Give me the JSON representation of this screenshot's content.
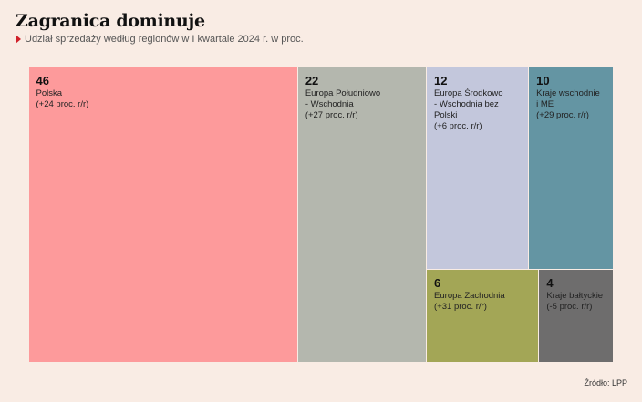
{
  "header": {
    "title": "Zagranica dominuje",
    "subtitle": "Udział sprzedaży według regionów w I kwartale 2024 r. w proc."
  },
  "footer": {
    "source": "Źródło: LPP"
  },
  "chart_data": {
    "type": "treemap",
    "title": "Zagranica dominuje",
    "subtitle": "Udział sprzedaży według regionów w I kwartale 2024 r. w proc.",
    "unit": "proc.",
    "items": [
      {
        "name": "Polska",
        "value": 46,
        "change": "(+24 proc. r/r)",
        "color": "#fd9a9b"
      },
      {
        "name": "Europa Południowo\n- Wschodnia",
        "value": 22,
        "change": "(+27 proc. r/r)",
        "color": "#b4b7ae"
      },
      {
        "name": "Europa Środkowo\n- Wschodnia bez Polski",
        "value": 12,
        "change": "(+6 proc. r/r)",
        "color": "#c3c7dc"
      },
      {
        "name": "Kraje wschodnie\ni ME",
        "value": 10,
        "change": "(+29 proc. r/r)",
        "color": "#6495a3"
      },
      {
        "name": "Europa Zachodnia",
        "value": 6,
        "change": "(+31 proc. r/r)",
        "color": "#a3a656"
      },
      {
        "name": "Kraje bałtyckie",
        "value": 4,
        "change": "(-5 proc. r/r)",
        "color": "#6e6d6d"
      }
    ]
  }
}
